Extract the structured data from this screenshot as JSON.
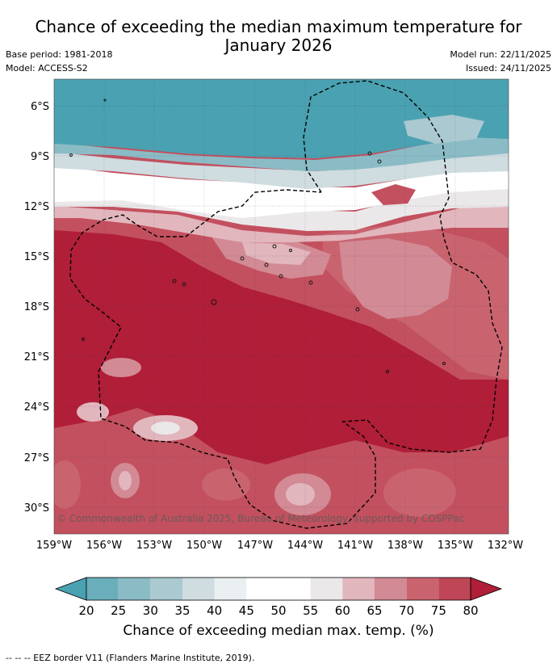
{
  "header": {
    "title_line1": "Chance of exceeding the median maximum temperature for",
    "title_line2": "January 2026",
    "base_period": "Base period: 1981-2018",
    "model": "Model: ACCESS-S2",
    "model_run": "Model run: 22/11/2025",
    "issued": "Issued: 24/11/2025"
  },
  "map": {
    "lat_labels": [
      "6°S",
      "9°S",
      "12°S",
      "15°S",
      "18°S",
      "21°S",
      "24°S",
      "27°S",
      "30°S"
    ],
    "lon_labels": [
      "159°W",
      "156°W",
      "153°W",
      "150°W",
      "147°W",
      "144°W",
      "141°W",
      "138°W",
      "135°W",
      "132°W"
    ],
    "copyright": "© Commonwealth of Australia 2025, Bureau of Meteorology, supported by COSPPac"
  },
  "colorbar": {
    "ticks": [
      "20",
      "25",
      "30",
      "35",
      "40",
      "45",
      "50",
      "55",
      "60",
      "65",
      "70",
      "75",
      "80"
    ],
    "colors": [
      "#4aa1b1",
      "#6aaebb",
      "#8bbcc6",
      "#aac9d0",
      "#cfdce0",
      "#eaeff1",
      "#ffffff",
      "#ffffff",
      "#ebe8ea",
      "#e2b6bd",
      "#d28a95",
      "#c9646f",
      "#be4656",
      "#b01e38"
    ],
    "title": "Chance of exceeding median max. temp. (%)"
  },
  "footer": {
    "legend": "--  --  -- EEZ border V11 (Flanders Marine Institute, 2019)."
  }
}
